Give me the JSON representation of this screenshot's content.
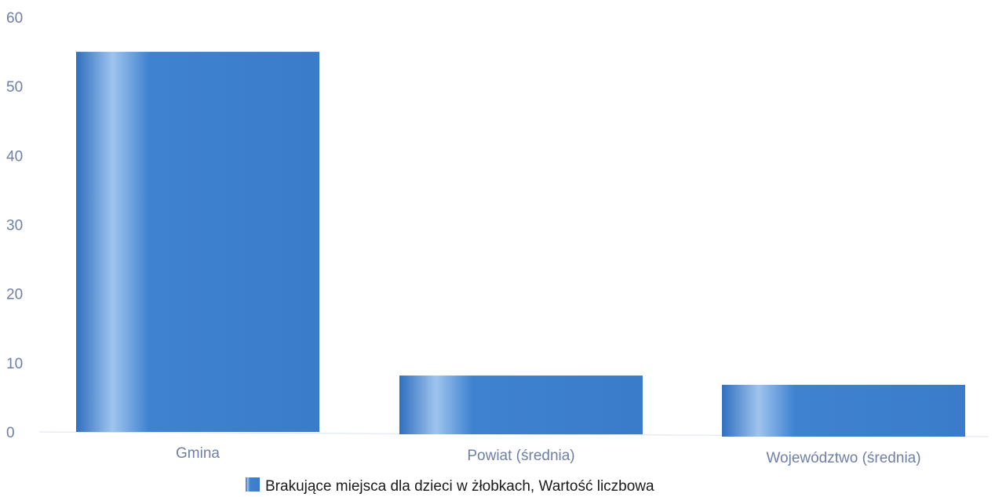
{
  "chart_data": {
    "type": "bar",
    "categories": [
      "Gmina",
      "Powiat (średnia)",
      "Województwo (średnia)"
    ],
    "series": [
      {
        "name": "Brakujące miejsca dla dzieci w żłobkach, Wartość liczbowa",
        "values": [
          55,
          8.5,
          7.5
        ],
        "color": "#3b7fcc"
      }
    ],
    "ylim": [
      0,
      60
    ],
    "yticks": [
      0,
      10,
      20,
      30,
      40,
      50,
      60
    ],
    "grid": false,
    "legend": "bottom-center"
  }
}
